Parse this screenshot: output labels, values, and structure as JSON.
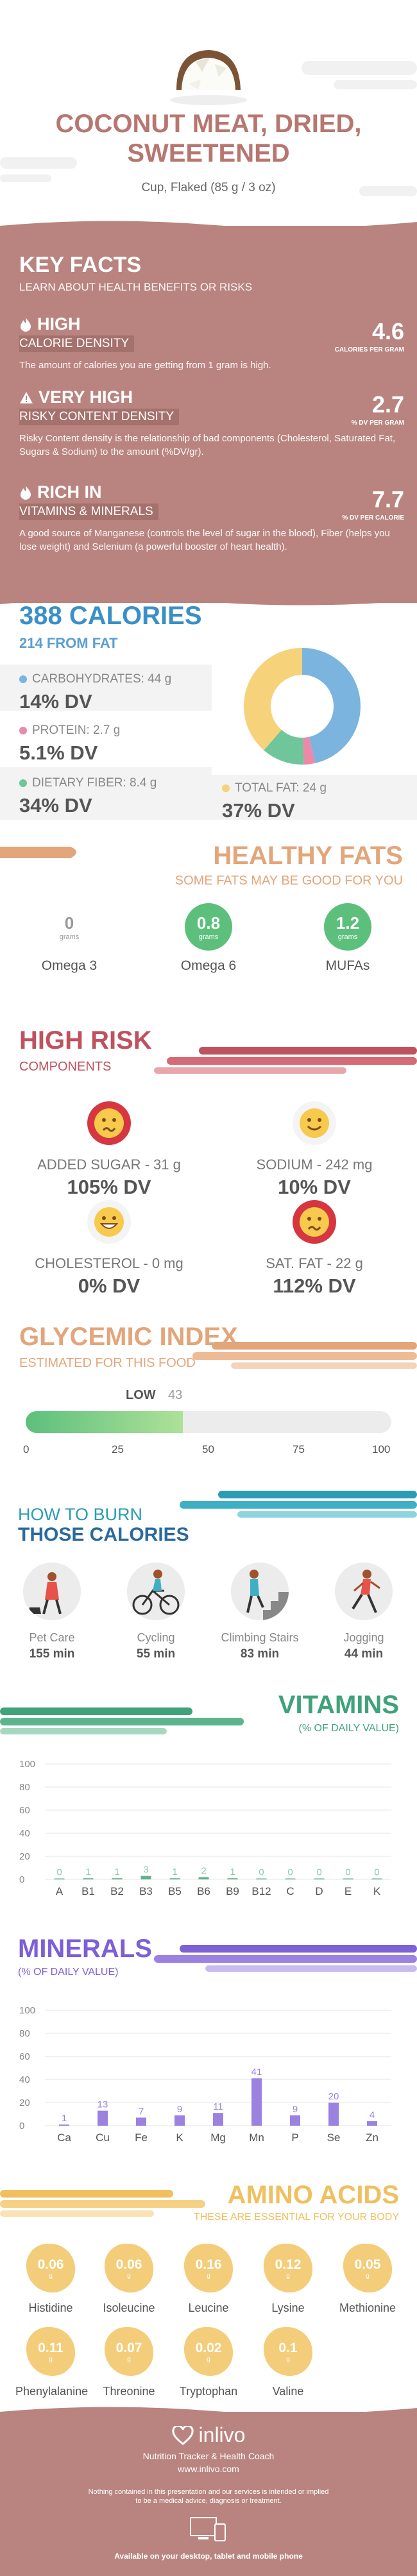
{
  "header": {
    "title_line1": "COCONUT MEAT, DRIED,",
    "title_line2": "SWEETENED",
    "serving": "Cup, Flaked (85 g / 3 oz)"
  },
  "key_facts": {
    "heading": "KEY FACTS",
    "subheading": "LEARN ABOUT HEALTH BENEFITS OR RISKS",
    "items": [
      {
        "label": "HIGH",
        "sub": "CALORIE DENSITY",
        "desc": "The amount of calories you are getting from 1 gram is high.",
        "value": "4.6",
        "unit": "CALORIES PER GRAM",
        "icon": "flame-icon"
      },
      {
        "label": "VERY HIGH",
        "sub": "RISKY CONTENT DENSITY",
        "desc": "Risky Content density is the relationship of bad components (Cholesterol, Saturated Fat, Sugars & Sodium) to the amount (%DV/gr).",
        "value": "2.7",
        "unit": "% DV PER GRAM",
        "icon": "warning-icon"
      },
      {
        "label": "RICH IN",
        "sub": "VITAMINS & MINERALS",
        "desc": "A good source of Manganese (controls the level of sugar in the blood), Fiber (helps you lose weight) and Selenium (a powerful booster of heart health).",
        "value": "7.7",
        "unit": "% DV PER CALORIE",
        "icon": "flame-icon"
      }
    ]
  },
  "calories": {
    "total": "388 CALORIES",
    "from_fat": "214 FROM FAT",
    "nutrients": [
      {
        "name": "CARBOHYDRATES: 44 g",
        "dv": "14% DV",
        "color": "#7ab4df"
      },
      {
        "name": "PROTEIN: 2.7 g",
        "dv": "5.1% DV",
        "color": "#e88aa8"
      },
      {
        "name": "DIETARY FIBER: 8.4 g",
        "dv": "34% DV",
        "color": "#6fc69a"
      },
      {
        "name": "TOTAL FAT: 24 g",
        "dv": "37% DV",
        "color": "#f6d27a"
      }
    ]
  },
  "healthy_fats": {
    "heading": "HEALTHY FATS",
    "sub": "SOME FATS MAY BE GOOD FOR YOU",
    "unit": "grams",
    "items": [
      {
        "value": "0",
        "name": "Omega 3"
      },
      {
        "value": "0.8",
        "name": "Omega 6"
      },
      {
        "value": "1.2",
        "name": "MUFAs"
      }
    ]
  },
  "high_risk": {
    "heading": "HIGH RISK",
    "sub": "COMPONENTS",
    "items": [
      {
        "name": "ADDED SUGAR - 31 g",
        "dv": "105% DV",
        "face": "worried-face-icon"
      },
      {
        "name": "SODIUM - 242 mg",
        "dv": "10% DV",
        "face": "smile-face-icon"
      },
      {
        "name": "CHOLESTEROL - 0 mg",
        "dv": "0% DV",
        "face": "grin-face-icon"
      },
      {
        "name": "SAT. FAT - 22 g",
        "dv": "112% DV",
        "face": "worried-face-icon"
      }
    ]
  },
  "glycemic": {
    "heading": "GLYCEMIC INDEX",
    "sub": "ESTIMATED FOR THIS FOOD",
    "level": "LOW",
    "value": 43,
    "value_label": "43",
    "ticks": [
      "0",
      "25",
      "50",
      "75",
      "100"
    ]
  },
  "burn": {
    "heading1": "HOW TO BURN",
    "heading2": "THOSE CALORIES",
    "items": [
      {
        "name": "Pet Care",
        "time": "155 min"
      },
      {
        "name": "Cycling",
        "time": "55 min"
      },
      {
        "name": "Climbing Stairs",
        "time": "83 min"
      },
      {
        "name": "Jogging",
        "time": "44 min"
      }
    ]
  },
  "vitamins": {
    "heading": "VITAMINS",
    "sub": "(% OF DAILY VALUE)",
    "yticks": [
      "100",
      "80",
      "60",
      "40",
      "20",
      "0"
    ],
    "chart_data": {
      "type": "bar",
      "categories": [
        "A",
        "B1",
        "B2",
        "B3",
        "B5",
        "B6",
        "B9",
        "B12",
        "C",
        "D",
        "E",
        "K"
      ],
      "values": [
        0,
        1,
        1,
        3,
        1,
        2,
        1,
        0,
        0,
        0,
        0,
        0
      ],
      "labels": [
        "0",
        "1",
        "1",
        "3",
        "1",
        "2",
        "1",
        "0",
        "0",
        "0",
        "0",
        "0"
      ],
      "ylim": [
        0,
        100
      ]
    }
  },
  "minerals": {
    "heading": "MINERALS",
    "sub": "(% OF DAILY VALUE)",
    "yticks": [
      "100",
      "80",
      "60",
      "40",
      "20",
      "0"
    ],
    "chart_data": {
      "type": "bar",
      "categories": [
        "Ca",
        "Cu",
        "Fe",
        "K",
        "Mg",
        "Mn",
        "P",
        "Se",
        "Zn"
      ],
      "values": [
        1,
        13,
        7,
        9,
        11,
        41,
        9,
        20,
        4
      ],
      "labels": [
        "1",
        "13",
        "7",
        "9",
        "11",
        "41",
        "9",
        "20",
        "4"
      ],
      "ylim": [
        0,
        100
      ]
    }
  },
  "amino": {
    "heading": "AMINO ACIDS",
    "sub": "THESE ARE ESSENTIAL FOR YOUR BODY",
    "unit": "g",
    "items": [
      {
        "value": "0.06",
        "name": "Histidine"
      },
      {
        "value": "0.06",
        "name": "Isoleucine"
      },
      {
        "value": "0.16",
        "name": "Leucine"
      },
      {
        "value": "0.12",
        "name": "Lysine"
      },
      {
        "value": "0.05",
        "name": "Methionine"
      },
      {
        "value": "0.11",
        "name": "Phenylalanine"
      },
      {
        "value": "0.07",
        "name": "Threonine"
      },
      {
        "value": "0.02",
        "name": "Tryptophan"
      },
      {
        "value": "0.1",
        "name": "Valine"
      }
    ]
  },
  "footer": {
    "brand": "inlivo",
    "tagline": "Nutrition Tracker & Health Coach",
    "url": "www.inlivo.com",
    "disclaimer1": "Nothing contained in this presentation and our services is intended or implied",
    "disclaimer2": "to be a medical advice, diagnosis or treatment.",
    "devices": "Available on your desktop, tablet and mobile phone"
  }
}
